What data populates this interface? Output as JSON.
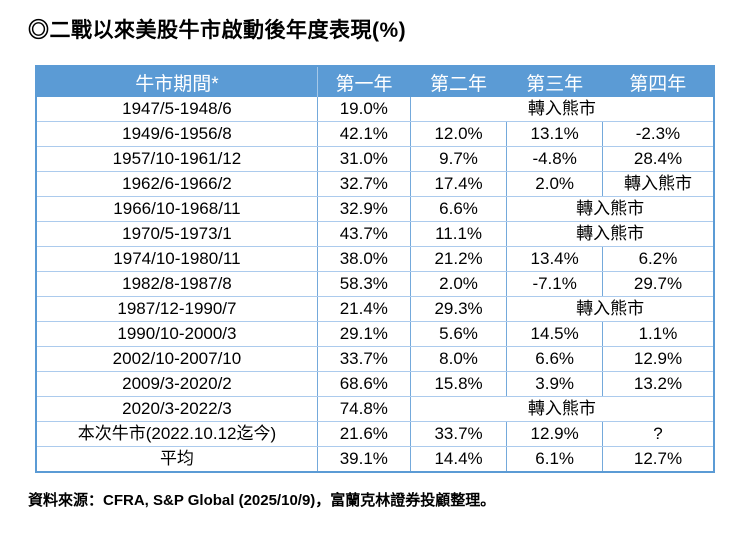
{
  "title": {
    "bullet": "◎",
    "text": "二戰以來美股牛市啟動後年度表現(%)"
  },
  "source": "資料來源：CFRA, S&P Global (2025/10/9)，富蘭克林證券投顧整理。",
  "colors": {
    "header_bg": "#5B9BD5",
    "header_text": "#FFFFFF",
    "grid_vertical": "#74A9DB",
    "grid_horizontal": "#ACCBED",
    "outer_border": "#5B9BD5",
    "body_text": "#000000"
  },
  "table": {
    "columns": [
      "牛市期間*",
      "第一年",
      "第二年",
      "第三年",
      "第四年"
    ],
    "column_widths_pct": [
      41.5,
      13.7,
      14.25,
      14.1,
      16.45
    ],
    "bear_label": "轉入熊市",
    "rows": [
      {
        "cells": [
          {
            "t": "1947/5-1948/6",
            "span": 1
          },
          {
            "t": "19.0%",
            "span": 1
          },
          {
            "t": "轉入熊市",
            "span": 3
          }
        ]
      },
      {
        "cells": [
          {
            "t": "1949/6-1956/8",
            "span": 1
          },
          {
            "t": "42.1%",
            "span": 1
          },
          {
            "t": "12.0%",
            "span": 1
          },
          {
            "t": "13.1%",
            "span": 1
          },
          {
            "t": "-2.3%",
            "span": 1
          }
        ]
      },
      {
        "cells": [
          {
            "t": "1957/10-1961/12",
            "span": 1
          },
          {
            "t": "31.0%",
            "span": 1
          },
          {
            "t": "9.7%",
            "span": 1
          },
          {
            "t": "-4.8%",
            "span": 1
          },
          {
            "t": "28.4%",
            "span": 1
          }
        ]
      },
      {
        "cells": [
          {
            "t": "1962/6-1966/2",
            "span": 1
          },
          {
            "t": "32.7%",
            "span": 1
          },
          {
            "t": "17.4%",
            "span": 1
          },
          {
            "t": "2.0%",
            "span": 1
          },
          {
            "t": "轉入熊市",
            "span": 1
          }
        ]
      },
      {
        "cells": [
          {
            "t": "1966/10-1968/11",
            "span": 1
          },
          {
            "t": "32.9%",
            "span": 1
          },
          {
            "t": "6.6%",
            "span": 1
          },
          {
            "t": "轉入熊市",
            "span": 2
          }
        ]
      },
      {
        "cells": [
          {
            "t": "1970/5-1973/1",
            "span": 1
          },
          {
            "t": "43.7%",
            "span": 1
          },
          {
            "t": "11.1%",
            "span": 1
          },
          {
            "t": "轉入熊市",
            "span": 2
          }
        ]
      },
      {
        "cells": [
          {
            "t": "1974/10-1980/11",
            "span": 1
          },
          {
            "t": "38.0%",
            "span": 1
          },
          {
            "t": "21.2%",
            "span": 1
          },
          {
            "t": "13.4%",
            "span": 1
          },
          {
            "t": "6.2%",
            "span": 1
          }
        ]
      },
      {
        "cells": [
          {
            "t": "1982/8-1987/8",
            "span": 1
          },
          {
            "t": "58.3%",
            "span": 1
          },
          {
            "t": "2.0%",
            "span": 1
          },
          {
            "t": "-7.1%",
            "span": 1
          },
          {
            "t": "29.7%",
            "span": 1
          }
        ]
      },
      {
        "cells": [
          {
            "t": "1987/12-1990/7",
            "span": 1
          },
          {
            "t": "21.4%",
            "span": 1
          },
          {
            "t": "29.3%",
            "span": 1
          },
          {
            "t": "轉入熊市",
            "span": 2
          }
        ]
      },
      {
        "cells": [
          {
            "t": "1990/10-2000/3",
            "span": 1
          },
          {
            "t": "29.1%",
            "span": 1
          },
          {
            "t": "5.6%",
            "span": 1
          },
          {
            "t": "14.5%",
            "span": 1
          },
          {
            "t": "1.1%",
            "span": 1
          }
        ]
      },
      {
        "cells": [
          {
            "t": "2002/10-2007/10",
            "span": 1
          },
          {
            "t": "33.7%",
            "span": 1
          },
          {
            "t": "8.0%",
            "span": 1
          },
          {
            "t": "6.6%",
            "span": 1
          },
          {
            "t": "12.9%",
            "span": 1
          }
        ]
      },
      {
        "cells": [
          {
            "t": "2009/3-2020/2",
            "span": 1
          },
          {
            "t": "68.6%",
            "span": 1
          },
          {
            "t": "15.8%",
            "span": 1
          },
          {
            "t": "3.9%",
            "span": 1
          },
          {
            "t": "13.2%",
            "span": 1
          }
        ]
      },
      {
        "cells": [
          {
            "t": "2020/3-2022/3",
            "span": 1
          },
          {
            "t": "74.8%",
            "span": 1
          },
          {
            "t": "轉入熊市",
            "span": 3
          }
        ]
      },
      {
        "cells": [
          {
            "t": "本次牛市(2022.10.12迄今)",
            "span": 1
          },
          {
            "t": "21.6%",
            "span": 1
          },
          {
            "t": "33.7%",
            "span": 1
          },
          {
            "t": "12.9%",
            "span": 1
          },
          {
            "t": "?",
            "span": 1
          }
        ]
      },
      {
        "cells": [
          {
            "t": "平均",
            "span": 1
          },
          {
            "t": "39.1%",
            "span": 1
          },
          {
            "t": "14.4%",
            "span": 1
          },
          {
            "t": "6.1%",
            "span": 1
          },
          {
            "t": "12.7%",
            "span": 1
          }
        ]
      }
    ]
  }
}
